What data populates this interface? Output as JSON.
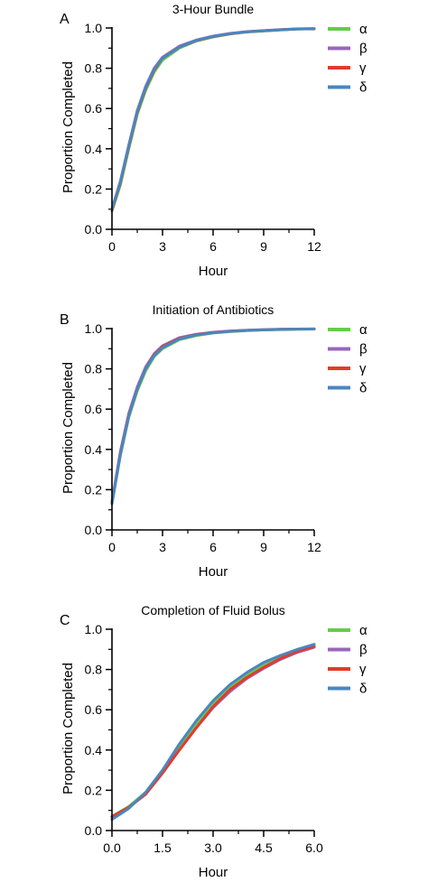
{
  "colors": {
    "alpha": "#66cc4a",
    "beta": "#9966bb",
    "gamma": "#e33a2a",
    "delta": "#4a86c0",
    "axis": "#000000"
  },
  "chart_data": [
    {
      "type": "line",
      "panel_label": "A",
      "title": "3-Hour Bundle",
      "xlabel": "Hour",
      "ylabel": "Proportion Completed",
      "xlim": [
        0,
        12
      ],
      "ylim": [
        0,
        1.0
      ],
      "xticks": [
        "0",
        "3",
        "6",
        "9",
        "12"
      ],
      "xtick_values": [
        0,
        3,
        6,
        9,
        12
      ],
      "yticks": [
        "0.0",
        "0.2",
        "0.4",
        "0.6",
        "0.8",
        "1.0"
      ],
      "ytick_values": [
        0,
        0.2,
        0.4,
        0.6,
        0.8,
        1.0
      ],
      "legend": "top-right",
      "grid": false,
      "x": [
        0,
        0.5,
        1,
        1.5,
        2,
        2.5,
        3,
        4,
        5,
        6,
        7,
        8,
        9,
        10,
        11,
        12
      ],
      "series": [
        {
          "name": "α",
          "color_key": "alpha",
          "values": [
            0.09,
            0.22,
            0.4,
            0.57,
            0.69,
            0.78,
            0.84,
            0.9,
            0.935,
            0.955,
            0.97,
            0.98,
            0.985,
            0.99,
            0.995,
            0.995
          ]
        },
        {
          "name": "β",
          "color_key": "beta",
          "values": [
            0.1,
            0.24,
            0.42,
            0.59,
            0.71,
            0.8,
            0.855,
            0.91,
            0.94,
            0.96,
            0.973,
            0.982,
            0.987,
            0.992,
            0.996,
            0.997
          ]
        },
        {
          "name": "γ",
          "color_key": "gamma",
          "values": [
            0.095,
            0.23,
            0.41,
            0.58,
            0.7,
            0.79,
            0.85,
            0.905,
            0.937,
            0.957,
            0.971,
            0.981,
            0.986,
            0.991,
            0.995,
            0.996
          ]
        },
        {
          "name": "δ",
          "color_key": "delta",
          "values": [
            0.1,
            0.235,
            0.415,
            0.585,
            0.705,
            0.795,
            0.85,
            0.905,
            0.938,
            0.958,
            0.972,
            0.981,
            0.986,
            0.991,
            0.995,
            0.996
          ]
        }
      ]
    },
    {
      "type": "line",
      "panel_label": "B",
      "title": "Initiation of Antibiotics",
      "xlabel": "Hour",
      "ylabel": "Proportion Completed",
      "xlim": [
        0,
        12
      ],
      "ylim": [
        0,
        1.0
      ],
      "xticks": [
        "0",
        "3",
        "6",
        "9",
        "12"
      ],
      "xtick_values": [
        0,
        3,
        6,
        9,
        12
      ],
      "yticks": [
        "0.0",
        "0.2",
        "0.4",
        "0.6",
        "0.8",
        "1.0"
      ],
      "ytick_values": [
        0,
        0.2,
        0.4,
        0.6,
        0.8,
        1.0
      ],
      "legend": "top-right",
      "grid": false,
      "x": [
        0,
        0.5,
        1,
        1.5,
        2,
        2.5,
        3,
        4,
        5,
        6,
        7,
        8,
        9,
        10,
        11,
        12
      ],
      "series": [
        {
          "name": "α",
          "color_key": "alpha",
          "values": [
            0.13,
            0.37,
            0.56,
            0.69,
            0.79,
            0.86,
            0.9,
            0.945,
            0.965,
            0.978,
            0.985,
            0.99,
            0.993,
            0.995,
            0.997,
            0.998
          ]
        },
        {
          "name": "β",
          "color_key": "beta",
          "values": [
            0.14,
            0.39,
            0.58,
            0.71,
            0.81,
            0.875,
            0.915,
            0.955,
            0.972,
            0.982,
            0.988,
            0.992,
            0.995,
            0.997,
            0.998,
            0.999
          ]
        },
        {
          "name": "γ",
          "color_key": "gamma",
          "values": [
            0.135,
            0.38,
            0.57,
            0.7,
            0.8,
            0.868,
            0.91,
            0.95,
            0.97,
            0.98,
            0.987,
            0.991,
            0.994,
            0.996,
            0.998,
            0.998
          ]
        },
        {
          "name": "δ",
          "color_key": "delta",
          "values": [
            0.13,
            0.375,
            0.565,
            0.7,
            0.8,
            0.865,
            0.905,
            0.948,
            0.968,
            0.979,
            0.986,
            0.991,
            0.994,
            0.996,
            0.997,
            0.998
          ]
        }
      ]
    },
    {
      "type": "line",
      "panel_label": "C",
      "title": "Completion of Fluid Bolus",
      "xlabel": "Hour",
      "ylabel": "Proportion Completed",
      "xlim": [
        0,
        6
      ],
      "ylim": [
        0,
        1.0
      ],
      "xticks": [
        "0.0",
        "1.5",
        "3.0",
        "4.5",
        "6.0"
      ],
      "xtick_values": [
        0,
        1.5,
        3,
        4.5,
        6
      ],
      "yticks": [
        "0.0",
        "0.2",
        "0.4",
        "0.6",
        "0.8",
        "1.0"
      ],
      "ytick_values": [
        0,
        0.2,
        0.4,
        0.6,
        0.8,
        1.0
      ],
      "legend": "top-right",
      "grid": false,
      "x": [
        0,
        0.5,
        1,
        1.5,
        2,
        2.5,
        3,
        3.5,
        4,
        4.5,
        5,
        5.5,
        6
      ],
      "series": [
        {
          "name": "α",
          "color_key": "alpha",
          "values": [
            0.07,
            0.12,
            0.19,
            0.3,
            0.42,
            0.53,
            0.63,
            0.71,
            0.77,
            0.82,
            0.86,
            0.895,
            0.92
          ]
        },
        {
          "name": "β",
          "color_key": "beta",
          "values": [
            0.065,
            0.115,
            0.185,
            0.29,
            0.4,
            0.51,
            0.61,
            0.69,
            0.755,
            0.805,
            0.85,
            0.885,
            0.91
          ]
        },
        {
          "name": "γ",
          "color_key": "gamma",
          "values": [
            0.07,
            0.115,
            0.18,
            0.285,
            0.4,
            0.51,
            0.615,
            0.7,
            0.76,
            0.81,
            0.855,
            0.89,
            0.915
          ]
        },
        {
          "name": "δ",
          "color_key": "delta",
          "values": [
            0.055,
            0.11,
            0.19,
            0.3,
            0.43,
            0.545,
            0.645,
            0.725,
            0.785,
            0.835,
            0.87,
            0.9,
            0.925
          ]
        }
      ]
    }
  ]
}
